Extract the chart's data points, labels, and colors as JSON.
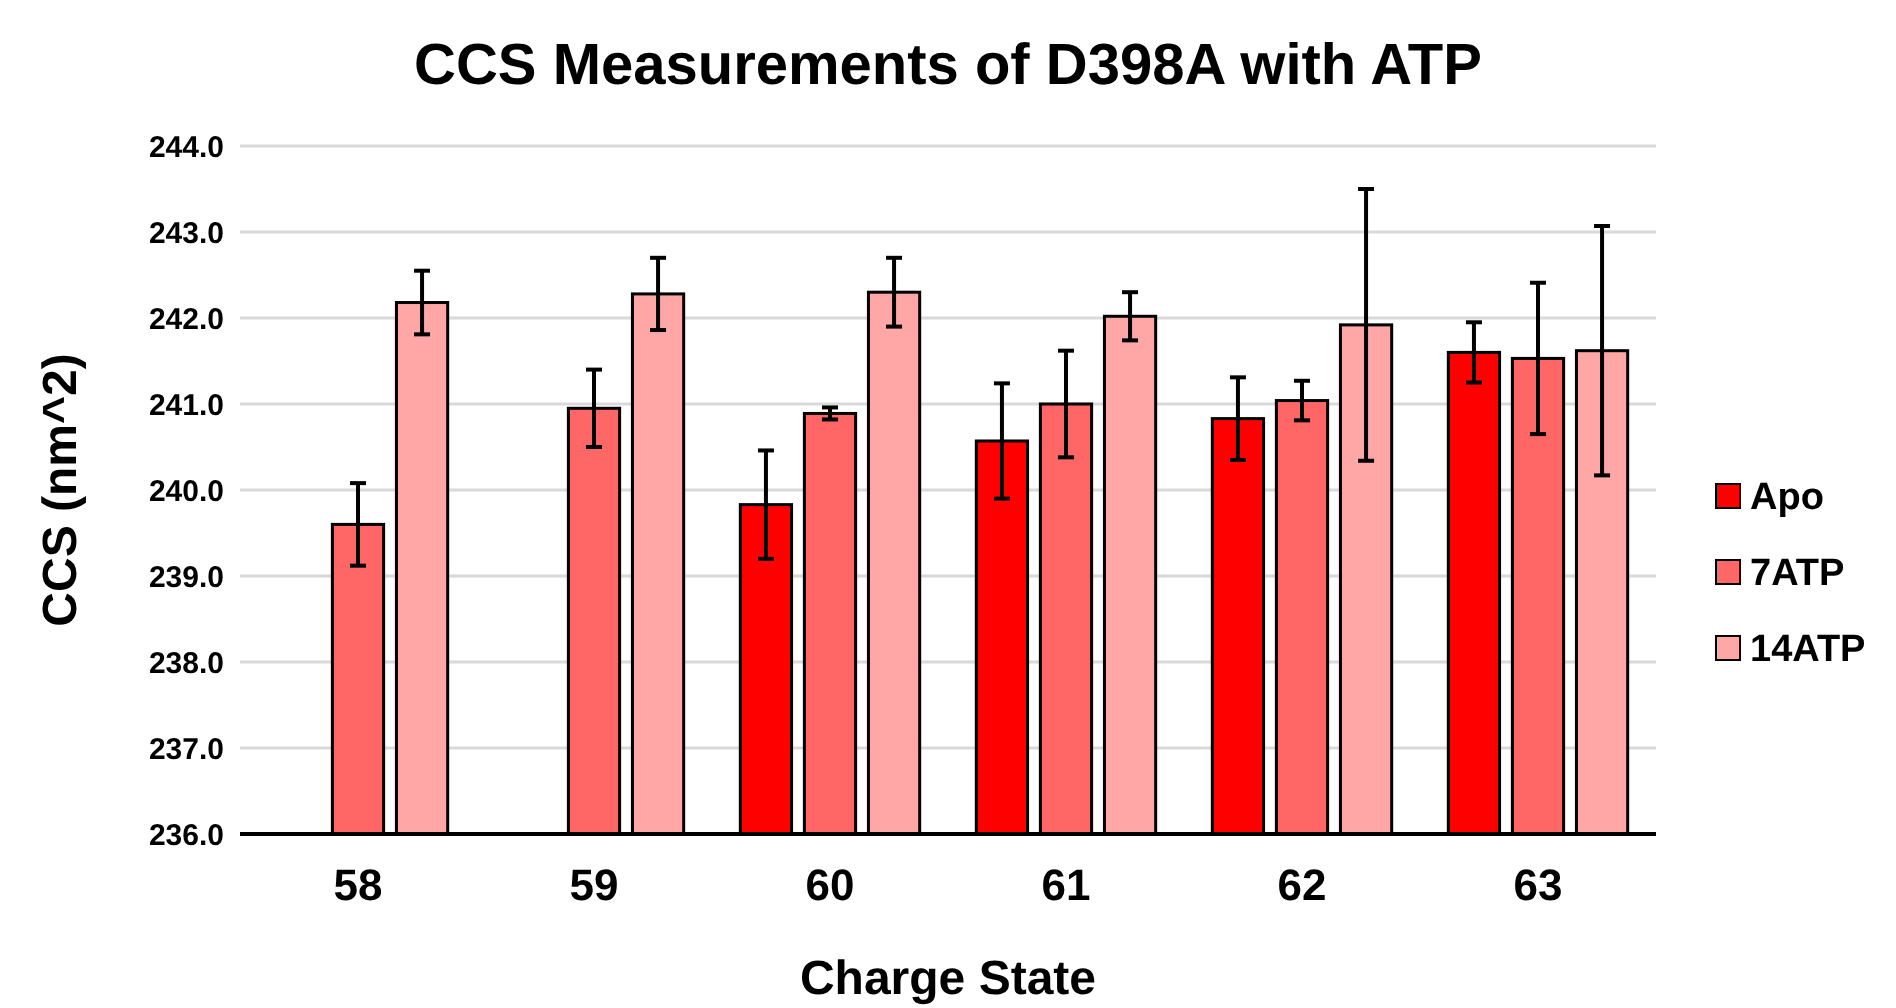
{
  "chart_data": {
    "type": "bar",
    "title": "CCS Measurements of D398A with ATP",
    "xlabel": "Charge State",
    "ylabel": "CCS (nm^2)",
    "categories": [
      "58",
      "59",
      "60",
      "61",
      "62",
      "63"
    ],
    "series": [
      {
        "name": "Apo",
        "color": "#ff0000",
        "values": [
          null,
          null,
          239.83,
          240.57,
          240.83,
          241.6
        ],
        "errors": [
          null,
          null,
          0.63,
          0.67,
          0.48,
          0.35
        ]
      },
      {
        "name": "7ATP",
        "color": "#ff6666",
        "values": [
          239.6,
          240.95,
          240.89,
          241.0,
          241.04,
          241.53
        ],
        "errors": [
          0.48,
          0.45,
          0.07,
          0.62,
          0.23,
          0.88
        ]
      },
      {
        "name": "14ATP",
        "color": "#ffa6a6",
        "values": [
          242.18,
          242.28,
          242.3,
          242.02,
          241.92,
          241.62
        ],
        "errors": [
          0.37,
          0.42,
          0.4,
          0.28,
          1.58,
          1.45
        ]
      }
    ],
    "ylim": [
      236,
      244
    ],
    "yticks": [
      {
        "value": 236,
        "label": "236.0"
      },
      {
        "value": 237,
        "label": "237.0"
      },
      {
        "value": 238,
        "label": "238.0"
      },
      {
        "value": 239,
        "label": "239.0"
      },
      {
        "value": 240,
        "label": "240.0"
      },
      {
        "value": 241,
        "label": "241.0"
      },
      {
        "value": 242,
        "label": "242.0"
      },
      {
        "value": 243,
        "label": "243.0"
      },
      {
        "value": 244,
        "label": "244.0"
      }
    ],
    "grid": "y",
    "legend": "right"
  }
}
